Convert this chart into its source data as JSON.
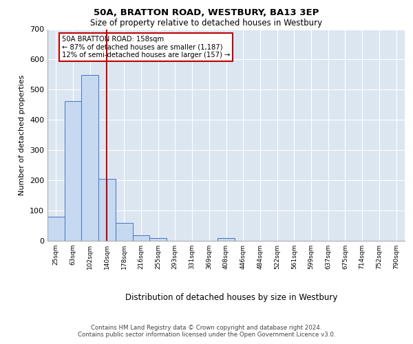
{
  "title1": "50A, BRATTON ROAD, WESTBURY, BA13 3EP",
  "title2": "Size of property relative to detached houses in Westbury",
  "xlabel": "Distribution of detached houses by size in Westbury",
  "ylabel": "Number of detached properties",
  "footer1": "Contains HM Land Registry data © Crown copyright and database right 2024.",
  "footer2": "Contains public sector information licensed under the Open Government Licence v3.0.",
  "categories": [
    "25sqm",
    "63sqm",
    "102sqm",
    "140sqm",
    "178sqm",
    "216sqm",
    "255sqm",
    "293sqm",
    "331sqm",
    "369sqm",
    "408sqm",
    "446sqm",
    "484sqm",
    "522sqm",
    "561sqm",
    "599sqm",
    "637sqm",
    "675sqm",
    "714sqm",
    "752sqm",
    "790sqm"
  ],
  "values": [
    80,
    462,
    549,
    205,
    60,
    18,
    10,
    0,
    0,
    0,
    8,
    0,
    0,
    0,
    0,
    0,
    0,
    0,
    0,
    0,
    0
  ],
  "bar_color": "#c6d9f0",
  "bar_edge_color": "#4472c4",
  "vline_color": "#c00000",
  "annotation_text": "50A BRATTON ROAD: 158sqm\n← 87% of detached houses are smaller (1,187)\n12% of semi-detached houses are larger (157) →",
  "ylim": [
    0,
    700
  ],
  "yticks": [
    0,
    100,
    200,
    300,
    400,
    500,
    600,
    700
  ],
  "plot_bg_color": "#dce6f1",
  "grid_color": "#ffffff",
  "fig_bg_color": "#ffffff",
  "figsize": [
    6.0,
    5.0
  ],
  "dpi": 100,
  "property_sqm": 158,
  "bin_starts": [
    25,
    63,
    102,
    140,
    178,
    216,
    255,
    293,
    331,
    369,
    408,
    446,
    484,
    522,
    561,
    599,
    637,
    675,
    714,
    752,
    790
  ]
}
